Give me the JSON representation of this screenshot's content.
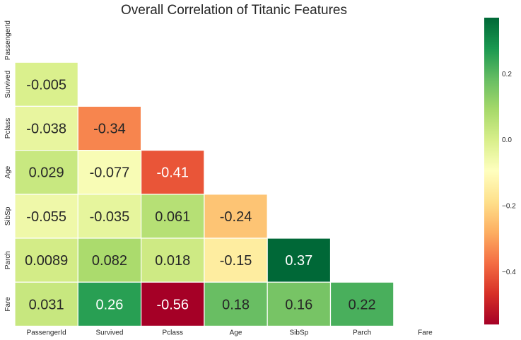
{
  "chart_data": {
    "type": "heatmap",
    "title": "Overall Correlation of Titanic Features",
    "rows": [
      "PassengerId",
      "Survived",
      "Pclass",
      "Age",
      "SibSp",
      "Parch",
      "Fare"
    ],
    "cols": [
      "PassengerId",
      "Survived",
      "Pclass",
      "Age",
      "SibSp",
      "Parch",
      "Fare"
    ],
    "cells": [
      {
        "row": "Survived",
        "col": "PassengerId",
        "value": -0.005,
        "label": "-0.005"
      },
      {
        "row": "Pclass",
        "col": "PassengerId",
        "value": -0.038,
        "label": "-0.038"
      },
      {
        "row": "Pclass",
        "col": "Survived",
        "value": -0.34,
        "label": "-0.34"
      },
      {
        "row": "Age",
        "col": "PassengerId",
        "value": 0.029,
        "label": "0.029"
      },
      {
        "row": "Age",
        "col": "Survived",
        "value": -0.077,
        "label": "-0.077"
      },
      {
        "row": "Age",
        "col": "Pclass",
        "value": -0.41,
        "label": "-0.41"
      },
      {
        "row": "SibSp",
        "col": "PassengerId",
        "value": -0.055,
        "label": "-0.055"
      },
      {
        "row": "SibSp",
        "col": "Survived",
        "value": -0.035,
        "label": "-0.035"
      },
      {
        "row": "SibSp",
        "col": "Pclass",
        "value": 0.061,
        "label": "0.061"
      },
      {
        "row": "SibSp",
        "col": "Age",
        "value": -0.24,
        "label": "-0.24"
      },
      {
        "row": "Parch",
        "col": "PassengerId",
        "value": 0.0089,
        "label": "0.0089"
      },
      {
        "row": "Parch",
        "col": "Survived",
        "value": 0.082,
        "label": "0.082"
      },
      {
        "row": "Parch",
        "col": "Pclass",
        "value": 0.018,
        "label": "0.018"
      },
      {
        "row": "Parch",
        "col": "Age",
        "value": -0.15,
        "label": "-0.15"
      },
      {
        "row": "Parch",
        "col": "SibSp",
        "value": 0.37,
        "label": "0.37"
      },
      {
        "row": "Fare",
        "col": "PassengerId",
        "value": 0.031,
        "label": "0.031"
      },
      {
        "row": "Fare",
        "col": "Survived",
        "value": 0.26,
        "label": "0.26"
      },
      {
        "row": "Fare",
        "col": "Pclass",
        "value": -0.56,
        "label": "-0.56"
      },
      {
        "row": "Fare",
        "col": "Age",
        "value": 0.18,
        "label": "0.18"
      },
      {
        "row": "Fare",
        "col": "SibSp",
        "value": 0.16,
        "label": "0.16"
      },
      {
        "row": "Fare",
        "col": "Parch",
        "value": 0.22,
        "label": "0.22"
      }
    ],
    "colormap": "RdYlGn",
    "color_range": [
      -0.56,
      0.37
    ],
    "colorbar_ticks": [
      {
        "value": 0.2,
        "label": "0.2"
      },
      {
        "value": 0.0,
        "label": "0.0"
      },
      {
        "value": -0.2,
        "label": "−0.2"
      },
      {
        "value": -0.4,
        "label": "−0.4"
      }
    ],
    "grid": false,
    "mask": "upper-triangle",
    "colors": {
      "stops": [
        "#a50026",
        "#d73027",
        "#f46d43",
        "#fdae61",
        "#fee08b",
        "#ffffbf",
        "#d9ef8b",
        "#a6d96a",
        "#66bd63",
        "#1a9850",
        "#006837"
      ],
      "dark_text": "#262626",
      "light_text": "#ffffff",
      "cell_border": "#ffffff"
    }
  }
}
